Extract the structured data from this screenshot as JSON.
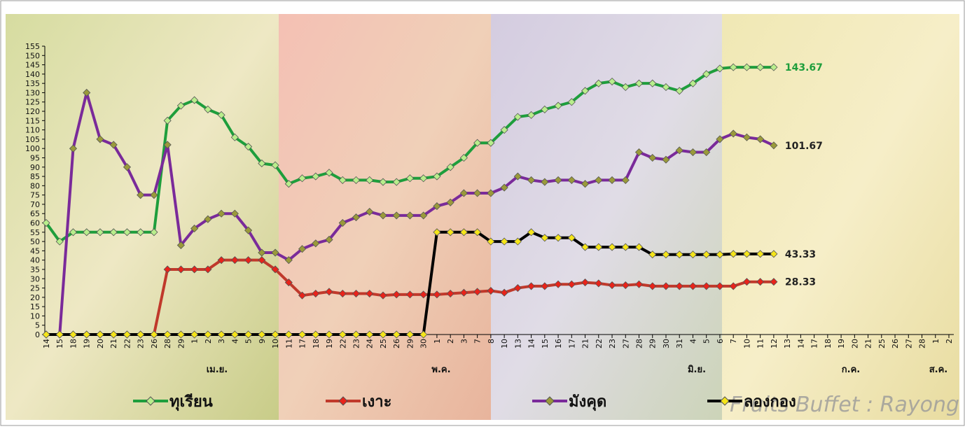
{
  "chart_data": {
    "type": "line",
    "watermark": "Fruits Buffet : Rayong",
    "categories": [
      "14",
      "15",
      "18",
      "19",
      "20",
      "21",
      "22",
      "23",
      "26",
      "28",
      "29",
      "1",
      "2",
      "3",
      "4",
      "5",
      "9",
      "10",
      "11",
      "17",
      "18",
      "19",
      "22",
      "23",
      "24",
      "25",
      "26",
      "29",
      "30",
      "1",
      "2",
      "3",
      "7",
      "8",
      "10",
      "13",
      "14",
      "15",
      "16",
      "17",
      "21",
      "22",
      "23",
      "27",
      "28",
      "29",
      "30",
      "31",
      "4",
      "5",
      "6",
      "7",
      "10",
      "11",
      "12",
      "13",
      "14",
      "17",
      "18",
      "19",
      "20",
      "21",
      "25",
      "26",
      "27",
      "28",
      "1",
      "2"
    ],
    "month_labels": [
      "เม.ย.",
      "พ.ค.",
      "มิ.ย.",
      "ก.ค.",
      "ส.ค."
    ],
    "ylim": [
      0,
      155
    ],
    "yticks": [
      0,
      5,
      10,
      15,
      20,
      25,
      30,
      35,
      40,
      45,
      50,
      55,
      60,
      65,
      70,
      75,
      80,
      85,
      90,
      95,
      100,
      105,
      110,
      115,
      120,
      125,
      130,
      135,
      140,
      145,
      150,
      155
    ],
    "series": [
      {
        "name": "ทุเรียน",
        "color": "#1e9e3c",
        "marker_color": "#b8ee8c",
        "label_color": "#1e9e3c",
        "values": [
          60,
          50,
          55,
          55,
          55,
          55,
          55,
          55,
          55,
          115,
          123,
          126,
          121,
          118,
          106,
          101,
          92,
          91,
          81,
          84,
          85,
          87,
          83,
          83,
          83,
          82,
          82,
          84,
          84,
          85,
          90,
          95,
          103,
          103,
          110,
          117,
          118,
          121,
          123,
          125,
          131,
          135,
          136,
          133,
          135,
          135,
          133,
          131,
          135,
          140,
          143,
          143.67,
          143.67,
          143.67,
          143.67,
          null,
          null,
          null,
          null,
          null,
          null,
          null,
          null,
          null,
          null,
          null,
          null,
          null
        ]
      },
      {
        "name": "เงาะ",
        "color": "#c0392b",
        "marker_color": "#e8231a",
        "label_color": "#222222",
        "values": [
          0,
          0,
          0,
          0,
          0,
          0,
          0,
          0,
          0,
          35,
          35,
          35,
          35,
          40,
          40,
          40,
          40,
          35,
          28,
          21,
          22,
          23,
          22,
          22,
          22,
          21,
          21.5,
          21.5,
          21.5,
          21.5,
          22,
          22.5,
          23,
          23.5,
          22.5,
          25,
          26,
          26,
          27,
          27,
          28,
          27.5,
          26.5,
          26.5,
          27,
          26,
          26,
          26,
          26,
          26,
          26,
          26,
          28.33,
          28.33,
          28.33,
          null,
          null,
          null,
          null,
          null,
          null,
          null,
          null,
          null,
          null,
          null,
          null,
          null
        ]
      },
      {
        "name": "มังคุด",
        "color": "#7a2a9a",
        "marker_color": "#9a9a3a",
        "label_color": "#222222",
        "values": [
          0,
          0,
          100,
          130,
          105,
          102,
          90,
          75,
          75,
          102,
          48,
          57,
          62,
          65,
          65,
          56,
          44,
          44,
          40,
          46,
          49,
          51,
          60,
          63,
          66,
          64,
          64,
          64,
          64,
          69,
          71,
          76,
          76,
          76,
          79,
          85,
          83,
          82,
          83,
          83,
          81,
          83,
          83,
          83,
          98,
          95,
          94,
          99,
          98,
          98,
          105,
          108,
          106,
          105,
          101.67,
          null,
          null,
          null,
          null,
          null,
          null,
          null,
          null,
          null,
          null,
          null,
          null,
          null
        ]
      },
      {
        "name": "ลองกอง",
        "color": "#000000",
        "marker_color": "#f5e51a",
        "label_color": "#222222",
        "values": [
          0,
          0,
          0,
          0,
          0,
          0,
          0,
          0,
          0,
          0,
          0,
          0,
          0,
          0,
          0,
          0,
          0,
          0,
          0,
          0,
          0,
          0,
          0,
          0,
          0,
          0,
          0,
          0,
          0,
          55,
          55,
          55,
          55,
          50,
          50,
          50,
          55,
          52,
          52,
          52,
          47,
          47,
          47,
          47,
          47,
          43,
          43,
          43,
          43,
          43,
          43,
          43.33,
          43.33,
          43.33,
          43.33,
          null,
          null,
          null,
          null,
          null,
          null,
          null,
          null,
          null,
          null,
          null,
          null,
          null
        ]
      }
    ]
  }
}
